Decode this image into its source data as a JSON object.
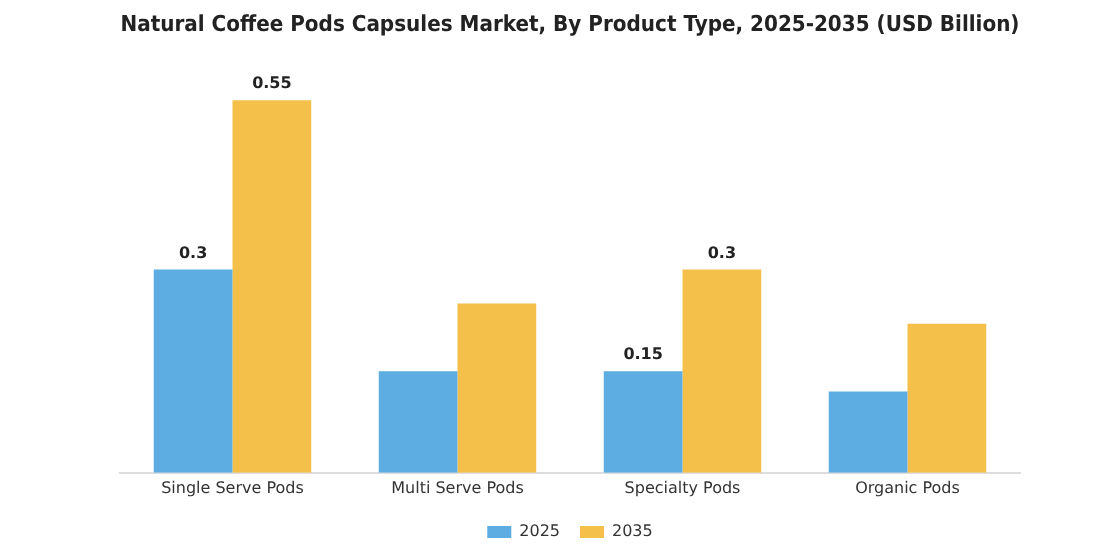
{
  "chart_data": {
    "type": "bar",
    "title": "Natural Coffee Pods Capsules Market, By Product Type, 2025-2035 (USD Billion)",
    "categories": [
      "Single Serve Pods",
      "Multi Serve Pods",
      "Specialty Pods",
      "Organic Pods"
    ],
    "series": [
      {
        "name": "2025",
        "color": "#5dade2",
        "values": [
          0.3,
          0.15,
          0.15,
          0.12
        ],
        "value_labels": [
          "0.3",
          null,
          "0.15",
          null
        ]
      },
      {
        "name": "2035",
        "color": "#f5c04a",
        "values": [
          0.55,
          0.25,
          0.3,
          0.22
        ],
        "value_labels": [
          "0.55",
          null,
          "0.3",
          null
        ]
      }
    ],
    "legend": "bottom",
    "tick_labels": "x",
    "grid": false
  }
}
